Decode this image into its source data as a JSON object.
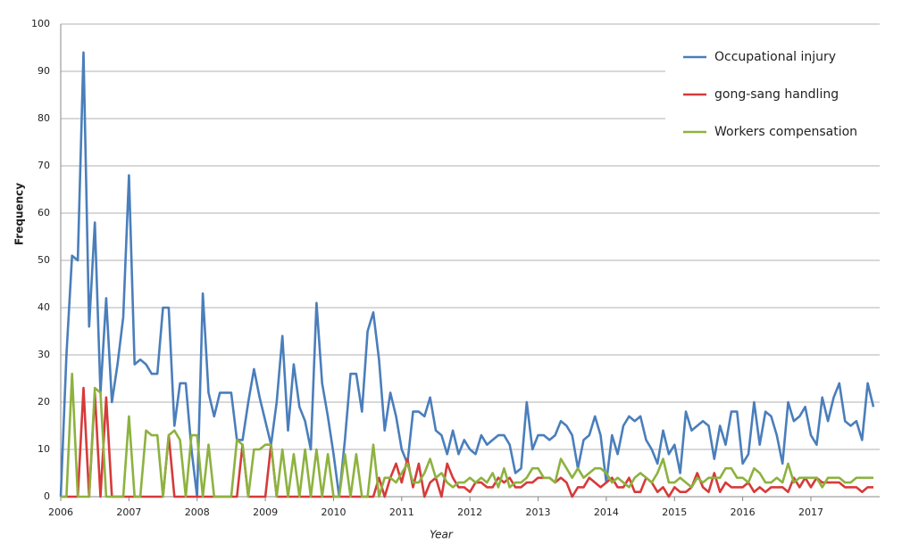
{
  "chart_data": {
    "type": "line",
    "x_label": "Year",
    "y_label": "Frequency",
    "categories": [
      "2006",
      null,
      null,
      null,
      null,
      null,
      null,
      null,
      null,
      null,
      null,
      null,
      "2007",
      null,
      null,
      null,
      null,
      null,
      null,
      null,
      null,
      null,
      null,
      null,
      "2008",
      null,
      null,
      null,
      null,
      null,
      null,
      null,
      null,
      null,
      null,
      null,
      "2009",
      null,
      null,
      null,
      null,
      null,
      null,
      null,
      null,
      null,
      null,
      null,
      "2010",
      null,
      null,
      null,
      null,
      null,
      null,
      null,
      null,
      null,
      null,
      null,
      "2011",
      null,
      null,
      null,
      null,
      null,
      null,
      null,
      null,
      null,
      null,
      null,
      "2012",
      null,
      null,
      null,
      null,
      null,
      null,
      null,
      null,
      null,
      null,
      null,
      "2013",
      null,
      null,
      null,
      null,
      null,
      null,
      null,
      null,
      null,
      null,
      null,
      "2014",
      null,
      null,
      null,
      null,
      null,
      null,
      null,
      null,
      null,
      null,
      null,
      "2015",
      null,
      null,
      null,
      null,
      null,
      null,
      null,
      null,
      null,
      null,
      null,
      "2016",
      null,
      null,
      null,
      null,
      null,
      null,
      null,
      null,
      null,
      null,
      null,
      "2017",
      null,
      null,
      null,
      null,
      null,
      null,
      null,
      null,
      null,
      null,
      null
    ],
    "series": [
      {
        "name": "Occupational injury",
        "color": "#4a7ebb",
        "values": [
          0,
          30,
          51,
          50,
          94,
          36,
          58,
          22,
          42,
          20,
          28,
          38,
          68,
          28,
          29,
          28,
          26,
          26,
          40,
          40,
          15,
          24,
          24,
          10,
          0,
          43,
          22,
          17,
          22,
          22,
          22,
          12,
          12,
          20,
          27,
          21,
          16,
          11,
          20,
          34,
          14,
          28,
          19,
          16,
          10,
          41,
          24,
          17,
          9,
          0,
          12,
          26,
          26,
          18,
          35,
          39,
          29,
          14,
          22,
          17,
          10,
          7,
          18,
          18,
          17,
          21,
          14,
          13,
          9,
          14,
          9,
          12,
          10,
          9,
          13,
          11,
          12,
          13,
          13,
          11,
          5,
          6,
          20,
          10,
          13,
          13,
          12,
          13,
          16,
          15,
          13,
          6,
          12,
          13,
          17,
          13,
          3,
          13,
          9,
          15,
          17,
          16,
          17,
          12,
          10,
          7,
          14,
          9,
          11,
          5,
          18,
          14,
          15,
          16,
          15,
          8,
          15,
          11,
          18,
          18,
          7,
          9,
          20,
          11,
          18,
          17,
          13,
          7,
          20,
          16,
          17,
          19,
          13,
          11,
          21,
          16,
          21,
          24,
          16,
          15,
          16,
          12,
          24,
          19
        ]
      },
      {
        "name": "gong-sang handling",
        "color": "#d63a3a",
        "values": [
          0,
          0,
          0,
          0,
          23,
          0,
          22,
          0,
          21,
          0,
          0,
          0,
          0,
          0,
          0,
          0,
          0,
          0,
          0,
          13,
          0,
          0,
          0,
          0,
          0,
          0,
          0,
          0,
          0,
          0,
          0,
          0,
          11,
          0,
          0,
          0,
          0,
          11,
          0,
          0,
          0,
          0,
          0,
          0,
          0,
          0,
          0,
          0,
          0,
          0,
          0,
          0,
          0,
          0,
          0,
          0,
          4,
          0,
          4,
          7,
          3,
          8,
          2,
          7,
          0,
          3,
          4,
          0,
          7,
          4,
          2,
          2,
          1,
          3,
          3,
          2,
          2,
          4,
          3,
          4,
          2,
          2,
          3,
          3,
          4,
          4,
          4,
          3,
          4,
          3,
          0,
          2,
          2,
          4,
          3,
          2,
          3,
          4,
          2,
          2,
          4,
          1,
          1,
          4,
          3,
          1,
          2,
          0,
          2,
          1,
          1,
          2,
          5,
          2,
          1,
          5,
          1,
          3,
          2,
          2,
          2,
          3,
          1,
          2,
          1,
          2,
          2,
          2,
          1,
          4,
          2,
          4,
          2,
          4,
          3,
          3,
          3,
          3,
          2,
          2,
          2,
          1,
          2,
          2
        ]
      },
      {
        "name": "Workers  compensation",
        "color": "#8db23f",
        "values": [
          0,
          0,
          26,
          0,
          0,
          0,
          23,
          22,
          0,
          0,
          0,
          0,
          17,
          0,
          0,
          14,
          13,
          13,
          0,
          13,
          14,
          12,
          0,
          13,
          13,
          0,
          11,
          0,
          0,
          0,
          0,
          12,
          11,
          0,
          10,
          10,
          11,
          11,
          0,
          10,
          0,
          9,
          0,
          10,
          0,
          10,
          0,
          9,
          0,
          0,
          9,
          0,
          9,
          0,
          0,
          11,
          0,
          4,
          4,
          3,
          5,
          7,
          3,
          3,
          5,
          8,
          4,
          5,
          3,
          2,
          3,
          3,
          4,
          3,
          4,
          3,
          5,
          2,
          6,
          2,
          3,
          3,
          4,
          6,
          6,
          4,
          4,
          3,
          8,
          6,
          4,
          6,
          4,
          5,
          6,
          6,
          5,
          3,
          4,
          3,
          2,
          4,
          5,
          4,
          3,
          5,
          8,
          3,
          3,
          4,
          3,
          2,
          4,
          3,
          4,
          4,
          4,
          6,
          6,
          4,
          4,
          3,
          6,
          5,
          3,
          3,
          4,
          3,
          7,
          3,
          4,
          4,
          4,
          4,
          2,
          4,
          4,
          4,
          3,
          3,
          4,
          4,
          4,
          4
        ]
      }
    ],
    "ylim": [
      0,
      100
    ],
    "yticks": [
      0,
      10,
      20,
      30,
      40,
      50,
      60,
      70,
      80,
      90,
      100
    ],
    "grid": true,
    "legend": "upper right"
  }
}
